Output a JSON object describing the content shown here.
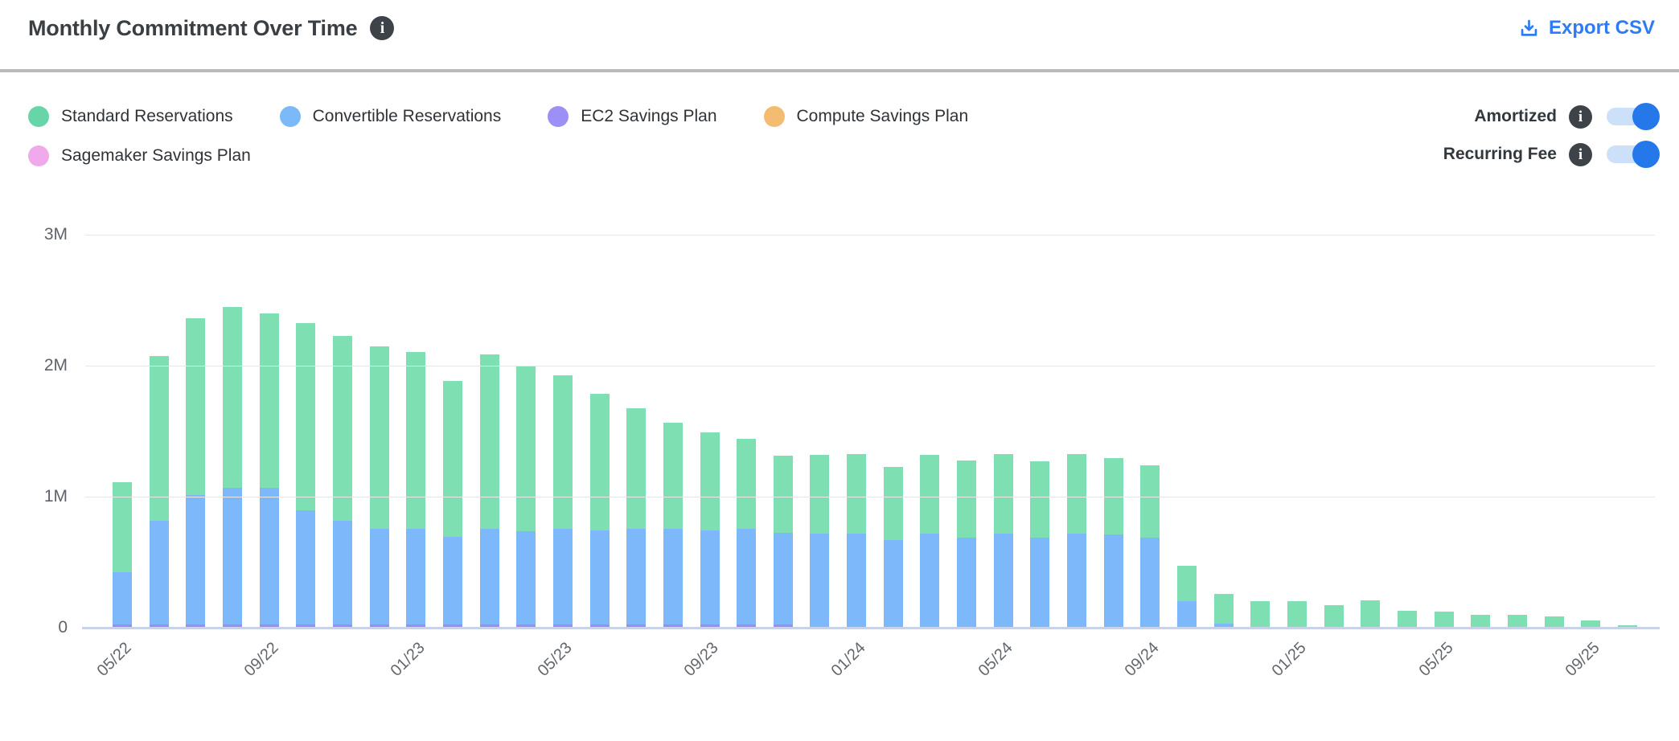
{
  "header": {
    "title": "Monthly Commitment Over Time",
    "export_label": "Export CSV"
  },
  "legend": {
    "items": [
      {
        "label": "Standard Reservations",
        "dot_color": "#68d5a8"
      },
      {
        "label": "Convertible Reservations",
        "dot_color": "#7cb9f8"
      },
      {
        "label": "EC2 Savings Plan",
        "dot_color": "#9c8ff5"
      },
      {
        "label": "Compute Savings Plan",
        "dot_color": "#f4bc70"
      },
      {
        "label": "Sagemaker Savings Plan",
        "dot_color": "#f0a9ea"
      }
    ]
  },
  "toggles": [
    {
      "label": "Amortized",
      "on": true
    },
    {
      "label": "Recurring Fee",
      "on": true
    }
  ],
  "colors": {
    "accent_blue": "#2e7cf5",
    "toggle_track": "#cce0fa",
    "toggle_knob": "#2478ea",
    "gridline": "#e7e7ea",
    "baseline": "#c9d2e6"
  },
  "chart_data": {
    "type": "bar",
    "variant": "stacked",
    "unit": "millions",
    "title": "Monthly Commitment Over Time",
    "xlabel": "",
    "ylabel": "",
    "ylim": [
      0,
      3
    ],
    "yticks": [
      {
        "value": 3,
        "label": "3M"
      },
      {
        "value": 2,
        "label": "2M"
      },
      {
        "value": 1,
        "label": "1M"
      },
      {
        "value": 0,
        "label": "0"
      }
    ],
    "x_label_every": 4,
    "legend_position": "top-left",
    "grid": true,
    "categories": [
      "05/22",
      "06/22",
      "07/22",
      "08/22",
      "09/22",
      "10/22",
      "11/22",
      "12/22",
      "01/23",
      "02/23",
      "03/23",
      "04/23",
      "05/23",
      "06/23",
      "07/23",
      "08/23",
      "09/23",
      "10/23",
      "11/23",
      "12/23",
      "01/24",
      "02/24",
      "03/24",
      "04/24",
      "05/24",
      "06/24",
      "07/24",
      "08/24",
      "09/24",
      "10/24",
      "11/24",
      "12/24",
      "01/25",
      "02/25",
      "03/25",
      "04/25",
      "05/25",
      "06/25",
      "07/25",
      "08/25",
      "09/25",
      "10/25"
    ],
    "stack_order_bottom_to_top": [
      "EC2 Savings Plan",
      "Convertible Reservations",
      "Standard Reservations"
    ],
    "series": [
      {
        "name": "Standard Reservations",
        "color": "#7edfb3",
        "values": [
          0.69,
          1.26,
          1.35,
          1.38,
          1.33,
          1.43,
          1.41,
          1.39,
          1.35,
          1.19,
          1.33,
          1.26,
          1.17,
          1.04,
          0.92,
          0.81,
          0.75,
          0.69,
          0.59,
          0.6,
          0.61,
          0.56,
          0.6,
          0.59,
          0.61,
          0.58,
          0.61,
          0.58,
          0.55,
          0.27,
          0.23,
          0.2,
          0.2,
          0.17,
          0.21,
          0.13,
          0.12,
          0.1,
          0.1,
          0.085,
          0.055,
          0.02
        ]
      },
      {
        "name": "Convertible Reservations",
        "color": "#7db9fa",
        "values": [
          0.4,
          0.79,
          0.99,
          1.04,
          1.04,
          0.87,
          0.79,
          0.73,
          0.73,
          0.67,
          0.73,
          0.71,
          0.73,
          0.72,
          0.73,
          0.73,
          0.72,
          0.73,
          0.7,
          0.72,
          0.72,
          0.67,
          0.72,
          0.69,
          0.72,
          0.69,
          0.72,
          0.71,
          0.69,
          0.2,
          0.03,
          0,
          0,
          0,
          0,
          0,
          0,
          0,
          0,
          0,
          0,
          0
        ]
      },
      {
        "name": "EC2 Savings Plan",
        "color": "#9b8ef2",
        "values": [
          0.025,
          0.025,
          0.025,
          0.025,
          0.025,
          0.025,
          0.025,
          0.025,
          0.025,
          0.025,
          0.025,
          0.025,
          0.025,
          0.025,
          0.025,
          0.025,
          0.025,
          0.025,
          0.025,
          0,
          0,
          0,
          0,
          0,
          0,
          0,
          0,
          0,
          0,
          0,
          0,
          0,
          0,
          0,
          0,
          0,
          0,
          0,
          0,
          0,
          0,
          0
        ]
      },
      {
        "name": "Compute Savings Plan",
        "color": "#f4bc70",
        "values": [
          0,
          0,
          0,
          0,
          0,
          0,
          0,
          0,
          0,
          0,
          0,
          0,
          0,
          0,
          0,
          0,
          0,
          0,
          0,
          0,
          0,
          0,
          0,
          0,
          0,
          0,
          0,
          0,
          0,
          0,
          0,
          0,
          0,
          0,
          0,
          0,
          0,
          0,
          0,
          0,
          0,
          0
        ]
      },
      {
        "name": "Sagemaker Savings Plan",
        "color": "#f0a9ea",
        "values": [
          0,
          0,
          0,
          0,
          0,
          0,
          0,
          0,
          0,
          0,
          0,
          0,
          0,
          0,
          0,
          0,
          0,
          0,
          0,
          0,
          0,
          0,
          0,
          0,
          0,
          0,
          0,
          0,
          0,
          0,
          0,
          0,
          0,
          0,
          0,
          0,
          0,
          0,
          0,
          0,
          0,
          0
        ]
      }
    ]
  }
}
